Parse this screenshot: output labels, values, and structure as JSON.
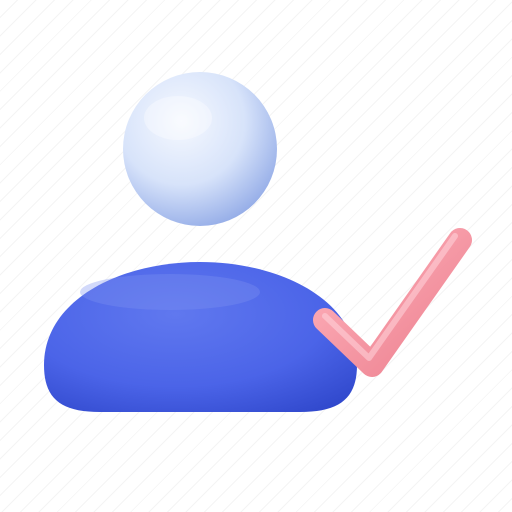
{
  "icon": {
    "name": "user-check-icon",
    "colors": {
      "head": "#dbe6fb",
      "head_shade": "#8fa9e8",
      "body": "#4a63e8",
      "body_shade": "#3249cf",
      "check": "#f08a96",
      "check_highlight": "#ffc0c8"
    }
  }
}
